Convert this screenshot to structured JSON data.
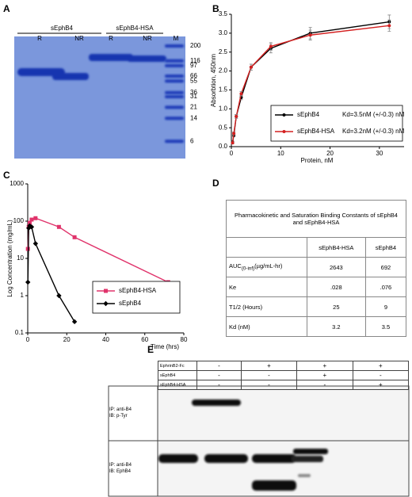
{
  "panel_labels": [
    "A",
    "B",
    "C",
    "D",
    "E"
  ],
  "gel": {
    "groups": [
      "sEphB4",
      "sEphB4-HSA"
    ],
    "lanes": [
      "R",
      "NR",
      "R",
      "NR",
      "M"
    ],
    "markers": [
      200,
      116,
      97,
      66,
      55,
      36,
      31,
      21,
      14,
      6
    ]
  },
  "chart_data": [
    {
      "type": "line",
      "xlabel": "Protein, nM",
      "ylabel": "Absorbtion, 450nm",
      "xlim": [
        0,
        35
      ],
      "xticks": [
        0,
        10,
        20,
        30
      ],
      "ylim": [
        0,
        3.5
      ],
      "yticks": [
        {
          "value": 0,
          "label": "0.0"
        },
        {
          "value": 0.5,
          "label": "0.5"
        },
        {
          "value": 1,
          "label": "1.0"
        },
        {
          "value": 1.5,
          "label": "1.5"
        },
        {
          "value": 2,
          "label": "2.0"
        },
        {
          "value": 2.5,
          "label": "2.5"
        },
        {
          "value": 3,
          "label": "3.0"
        },
        {
          "value": 3.5,
          "label": "3.5"
        }
      ],
      "legend": "lower right",
      "series": [
        {
          "name": "sEphB4",
          "annotation": "Kd=3.5nM (+/-0.3) nM",
          "color": "#000000",
          "marker": "circle",
          "x": [
            0.25,
            0.5,
            1,
            2,
            4,
            8,
            16,
            32
          ],
          "values": [
            0.12,
            0.3,
            0.8,
            1.3,
            2.1,
            2.6,
            3.0,
            3.3
          ],
          "errors": [
            0.03,
            0.04,
            0.05,
            0.06,
            0.08,
            0.12,
            0.15,
            0.18
          ]
        },
        {
          "name": "sEphB4-HSA",
          "annotation": "Kd=3.2nM (+/-0.3) nM",
          "color": "#d42020",
          "marker": "circle",
          "x": [
            0.25,
            0.5,
            1,
            2,
            4,
            8,
            16,
            32
          ],
          "values": [
            0.1,
            0.35,
            0.8,
            1.4,
            2.1,
            2.65,
            2.95,
            3.2
          ],
          "errors": [
            0.03,
            0.04,
            0.05,
            0.06,
            0.08,
            0.1,
            0.13,
            0.15
          ]
        }
      ]
    },
    {
      "type": "line",
      "log_y": true,
      "xlabel": "Time (hrs)",
      "ylabel": "Log Concentration (mg/mL)",
      "xlim": [
        0,
        80
      ],
      "xticks": [
        0,
        20,
        40,
        60,
        80
      ],
      "ylim": [
        0.1,
        1000
      ],
      "yticks": [
        0.1,
        1,
        10,
        100,
        1000
      ],
      "legend": "lower center",
      "series": [
        {
          "name": "sEphB4-HSA",
          "color": "#e0336b",
          "marker": "square",
          "x": [
            0.08,
            0.5,
            1,
            2,
            4,
            16,
            24,
            72
          ],
          "values": [
            18,
            70,
            90,
            110,
            120,
            70,
            37,
            2.3
          ]
        },
        {
          "name": "sEphB4",
          "color": "#000000",
          "marker": "diamond",
          "x": [
            0.08,
            0.5,
            1,
            2,
            4,
            16,
            24
          ],
          "values": [
            2.3,
            65,
            75,
            70,
            25,
            1.0,
            0.2
          ]
        }
      ]
    }
  ],
  "table": {
    "title": "Pharmacokinetic and Saturation Binding Constants of sEphB4 and sEphB4-HSA",
    "headers": [
      "sEphB4-HSA",
      "sEphB4"
    ],
    "rows": [
      {
        "label": "AUC",
        "label_sub": "(0-inf)",
        "label_unit": "(µg/mL-hr)",
        "values": [
          "2643",
          "692"
        ]
      },
      {
        "label": "Ke",
        "values": [
          ".028",
          ".076"
        ]
      },
      {
        "label": "T1/2 (Hours)",
        "values": [
          "25",
          "9"
        ]
      },
      {
        "label": "Kd (nM)",
        "values": [
          "3.2",
          "3.5"
        ]
      }
    ]
  },
  "blot": {
    "conditions": [
      {
        "name": "EphrinB2-Fc",
        "signs": [
          "-",
          "+",
          "+",
          "+"
        ]
      },
      {
        "name": "sEphB4",
        "signs": [
          "-",
          "-",
          "+",
          "-"
        ]
      },
      {
        "name": "sEphB4-HSA",
        "signs": [
          "-",
          "-",
          "-",
          "+"
        ]
      }
    ],
    "panels": [
      [
        "IP: anti-B4",
        "IB: p-Tyr"
      ],
      [
        "IP: anti-B4",
        "IB: EphB4"
      ]
    ]
  }
}
